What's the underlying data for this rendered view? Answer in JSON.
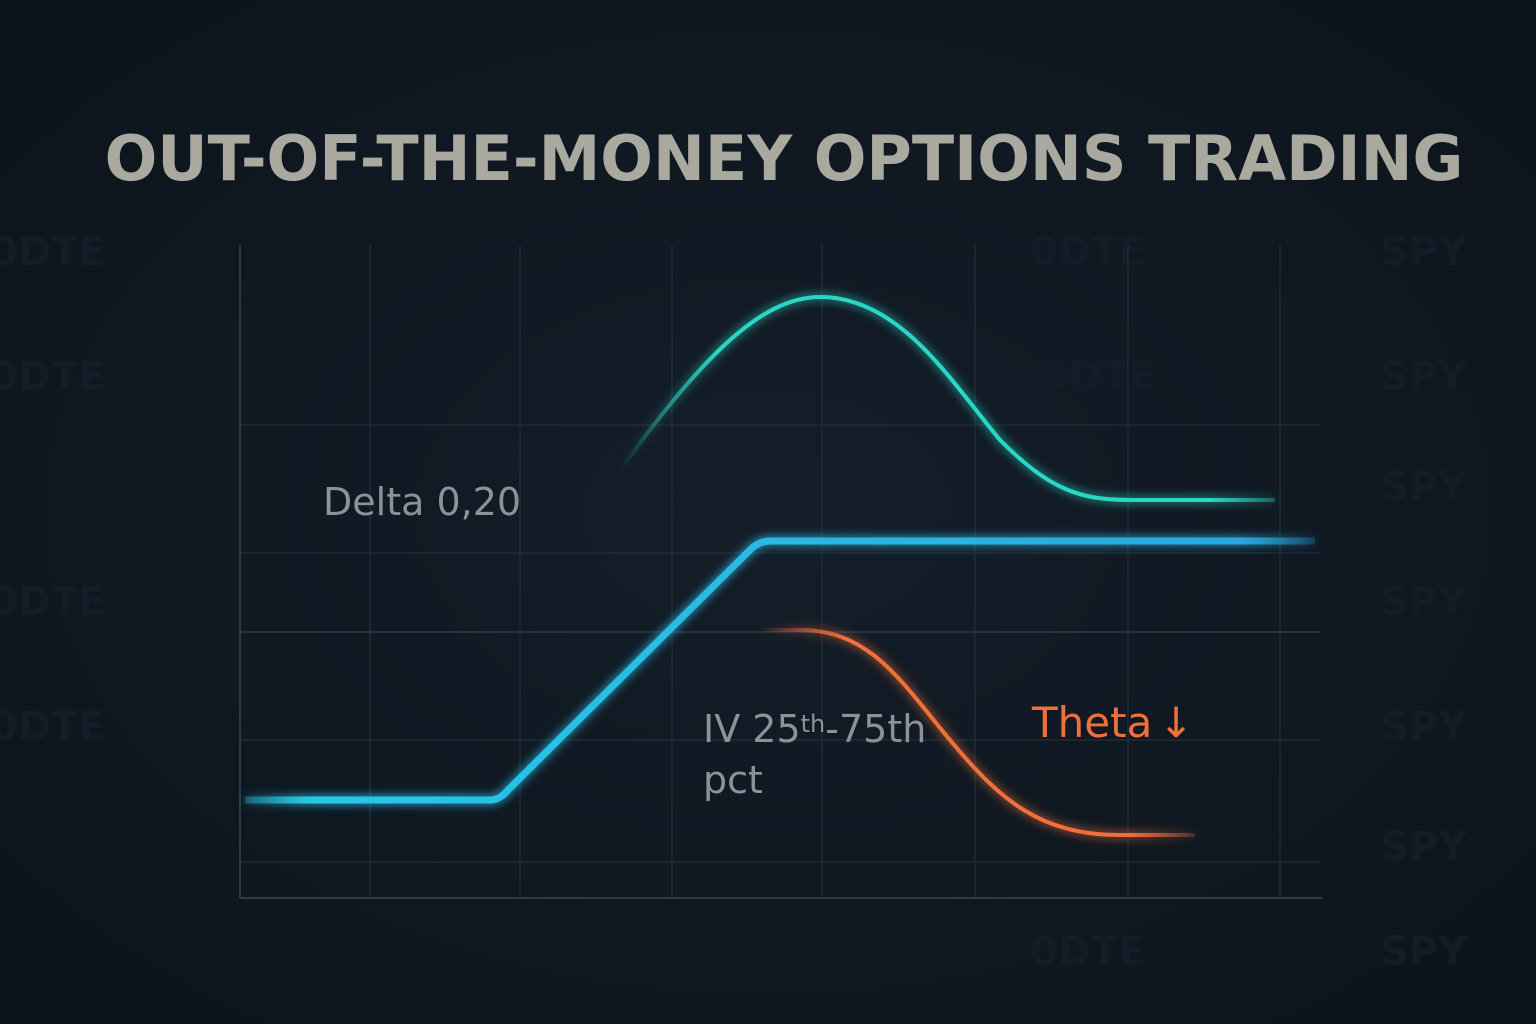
{
  "header": {
    "title": "OUT-OF-THE-MONEY OPTIONS TRADING"
  },
  "labels": {
    "delta": "Delta 0,20",
    "iv": {
      "main": "IV 25",
      "sup": "th",
      "rest": "-75th",
      "line2": "pct"
    },
    "theta": {
      "text": "Theta",
      "arrow": "↓"
    }
  },
  "watermark": [
    "0DTE",
    "SPY"
  ]
}
